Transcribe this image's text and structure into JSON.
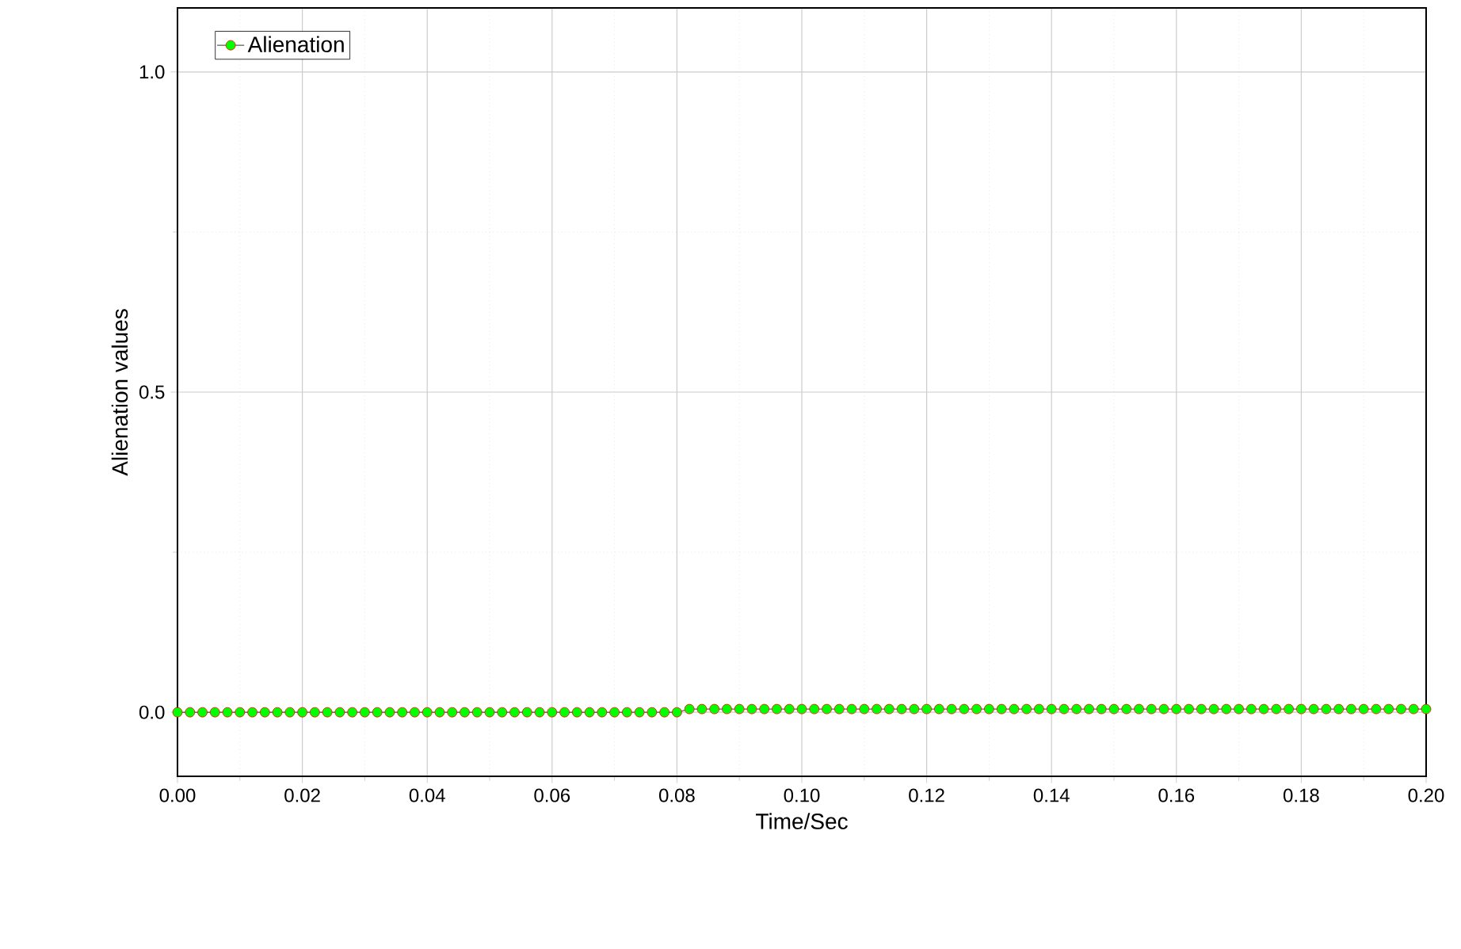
{
  "chart_data": {
    "type": "line",
    "xlabel": "Time/Sec",
    "ylabel": "Alienation values",
    "xlim": [
      0,
      0.2
    ],
    "ylim": [
      -0.1,
      1.1
    ],
    "xticks": [
      {
        "value": 0,
        "label": "0.00"
      },
      {
        "value": 0.02,
        "label": "0.02"
      },
      {
        "value": 0.04,
        "label": "0.04"
      },
      {
        "value": 0.06,
        "label": "0.06"
      },
      {
        "value": 0.08,
        "label": "0.08"
      },
      {
        "value": 0.1,
        "label": "0.10"
      },
      {
        "value": 0.12,
        "label": "0.12"
      },
      {
        "value": 0.14,
        "label": "0.14"
      },
      {
        "value": 0.16,
        "label": "0.16"
      },
      {
        "value": 0.18,
        "label": "0.18"
      },
      {
        "value": 0.2,
        "label": "0.20"
      }
    ],
    "yticks": [
      {
        "value": 0,
        "label": "0.0"
      },
      {
        "value": 0.5,
        "label": "0.5"
      },
      {
        "value": 1,
        "label": "1.0"
      }
    ],
    "grid": true,
    "legend": "top left",
    "marker": "circle",
    "line_style": "solid",
    "x": [
      0,
      0.002,
      0.004,
      0.006,
      0.008,
      0.01,
      0.012,
      0.014,
      0.016,
      0.018,
      0.02,
      0.022,
      0.024,
      0.026,
      0.028,
      0.03,
      0.032,
      0.034,
      0.036,
      0.038,
      0.04,
      0.042,
      0.044,
      0.046,
      0.048,
      0.05,
      0.052,
      0.054,
      0.056,
      0.058,
      0.06,
      0.062,
      0.064,
      0.066,
      0.068,
      0.07,
      0.072,
      0.074,
      0.076,
      0.078,
      0.08,
      0.082,
      0.084,
      0.086,
      0.088,
      0.09,
      0.092,
      0.094,
      0.096,
      0.098,
      0.1,
      0.102,
      0.104,
      0.106,
      0.108,
      0.11,
      0.112,
      0.114,
      0.116,
      0.118,
      0.12,
      0.122,
      0.124,
      0.126,
      0.128,
      0.13,
      0.132,
      0.134,
      0.136,
      0.138,
      0.14,
      0.142,
      0.144,
      0.146,
      0.148,
      0.15,
      0.152,
      0.154,
      0.156,
      0.158,
      0.16,
      0.162,
      0.164,
      0.166,
      0.168,
      0.17,
      0.172,
      0.174,
      0.176,
      0.178,
      0.18,
      0.182,
      0.184,
      0.186,
      0.188,
      0.19,
      0.192,
      0.194,
      0.196,
      0.198,
      0.2
    ],
    "series": [
      {
        "name": "Alienation",
        "color": "#00ff00",
        "values": [
          0,
          0,
          0,
          0,
          0,
          0,
          0,
          0,
          0,
          0,
          0,
          0,
          0,
          0,
          0,
          0,
          0,
          0,
          0,
          0,
          0,
          0,
          0,
          0,
          0,
          0,
          0,
          0,
          0,
          0,
          0,
          0,
          0,
          0,
          0,
          0,
          0,
          0,
          0,
          0,
          0,
          0.005,
          0.005,
          0.005,
          0.005,
          0.005,
          0.005,
          0.005,
          0.005,
          0.005,
          0.005,
          0.005,
          0.005,
          0.005,
          0.005,
          0.005,
          0.005,
          0.005,
          0.005,
          0.005,
          0.005,
          0.005,
          0.005,
          0.005,
          0.005,
          0.005,
          0.005,
          0.005,
          0.005,
          0.005,
          0.005,
          0.005,
          0.005,
          0.005,
          0.005,
          0.005,
          0.005,
          0.005,
          0.005,
          0.005,
          0.005,
          0.005,
          0.005,
          0.005,
          0.005,
          0.005,
          0.005,
          0.005,
          0.005,
          0.005,
          0.005,
          0.005,
          0.005,
          0.005,
          0.005,
          0.005,
          0.005,
          0.005,
          0.005,
          0.005,
          0.005
        ]
      }
    ]
  }
}
